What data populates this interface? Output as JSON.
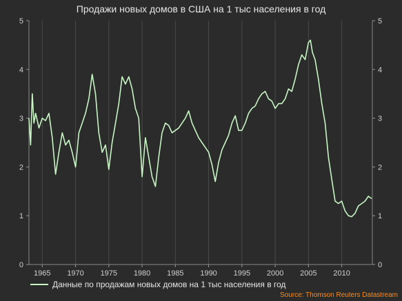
{
  "chart_data": {
    "type": "line",
    "title": "Продажи новых домов в США на 1 тыс населения в год",
    "xlabel": "",
    "ylabel": "",
    "xlim": [
      1963.0,
      2014.6
    ],
    "ylim": [
      0,
      5
    ],
    "y_ticks": [
      0,
      1,
      2,
      3,
      4,
      5
    ],
    "x_ticks": [
      1965,
      1970,
      1975,
      1980,
      1985,
      1990,
      1995,
      2000,
      2005,
      2010
    ],
    "grid": "vertical",
    "legend_position": "bottom-left",
    "line_color": "#c8f7c5",
    "series": [
      {
        "name": "Данные по продажам новых домов на 1 тыс населения в год",
        "x": [
          1963.0,
          1963.25,
          1963.5,
          1963.75,
          1964.0,
          1964.5,
          1965.0,
          1965.5,
          1966.0,
          1966.5,
          1967.0,
          1967.5,
          1968.0,
          1968.5,
          1969.0,
          1969.5,
          1970.0,
          1970.5,
          1971.0,
          1971.5,
          1972.0,
          1972.5,
          1973.0,
          1973.5,
          1974.0,
          1974.5,
          1975.0,
          1975.5,
          1976.0,
          1976.5,
          1977.0,
          1977.5,
          1978.0,
          1978.5,
          1979.0,
          1979.5,
          1980.0,
          1980.5,
          1981.0,
          1981.5,
          1982.0,
          1982.5,
          1983.0,
          1983.5,
          1984.0,
          1984.5,
          1985.0,
          1985.5,
          1986.0,
          1986.5,
          1987.0,
          1987.5,
          1988.0,
          1988.5,
          1989.0,
          1989.5,
          1990.0,
          1990.5,
          1991.0,
          1991.5,
          1992.0,
          1992.5,
          1993.0,
          1993.5,
          1994.0,
          1994.5,
          1995.0,
          1995.5,
          1996.0,
          1996.5,
          1997.0,
          1997.5,
          1998.0,
          1998.5,
          1999.0,
          1999.5,
          2000.0,
          2000.5,
          2001.0,
          2001.5,
          2002.0,
          2002.5,
          2003.0,
          2003.5,
          2004.0,
          2004.5,
          2005.0,
          2005.3,
          2005.6,
          2006.0,
          2006.5,
          2007.0,
          2007.5,
          2008.0,
          2008.5,
          2009.0,
          2009.5,
          2010.0,
          2010.5,
          2011.0,
          2011.5,
          2012.0,
          2012.5,
          2013.0,
          2013.5,
          2014.0,
          2014.5
        ],
        "values": [
          3.0,
          2.45,
          3.5,
          2.9,
          3.1,
          2.8,
          3.0,
          2.95,
          3.1,
          2.6,
          1.85,
          2.3,
          2.7,
          2.45,
          2.55,
          2.3,
          2.0,
          2.7,
          2.9,
          3.1,
          3.4,
          3.9,
          3.5,
          2.7,
          2.3,
          2.45,
          1.95,
          2.5,
          2.9,
          3.3,
          3.85,
          3.7,
          3.85,
          3.6,
          3.2,
          3.0,
          1.8,
          2.6,
          2.2,
          1.8,
          1.6,
          2.2,
          2.7,
          2.9,
          2.85,
          2.7,
          2.75,
          2.8,
          2.9,
          3.0,
          3.15,
          2.9,
          2.75,
          2.6,
          2.5,
          2.4,
          2.3,
          2.05,
          1.7,
          2.1,
          2.35,
          2.5,
          2.65,
          2.9,
          3.05,
          2.75,
          2.75,
          2.9,
          3.1,
          3.2,
          3.25,
          3.4,
          3.5,
          3.55,
          3.4,
          3.35,
          3.2,
          3.3,
          3.3,
          3.4,
          3.6,
          3.55,
          3.8,
          4.1,
          4.3,
          4.2,
          4.55,
          4.6,
          4.35,
          4.2,
          3.8,
          3.3,
          2.9,
          2.2,
          1.75,
          1.3,
          1.25,
          1.3,
          1.1,
          1.0,
          0.98,
          1.05,
          1.2,
          1.25,
          1.3,
          1.4,
          1.35
        ]
      }
    ],
    "source": "Source: Thomson Reuters Datastream"
  }
}
